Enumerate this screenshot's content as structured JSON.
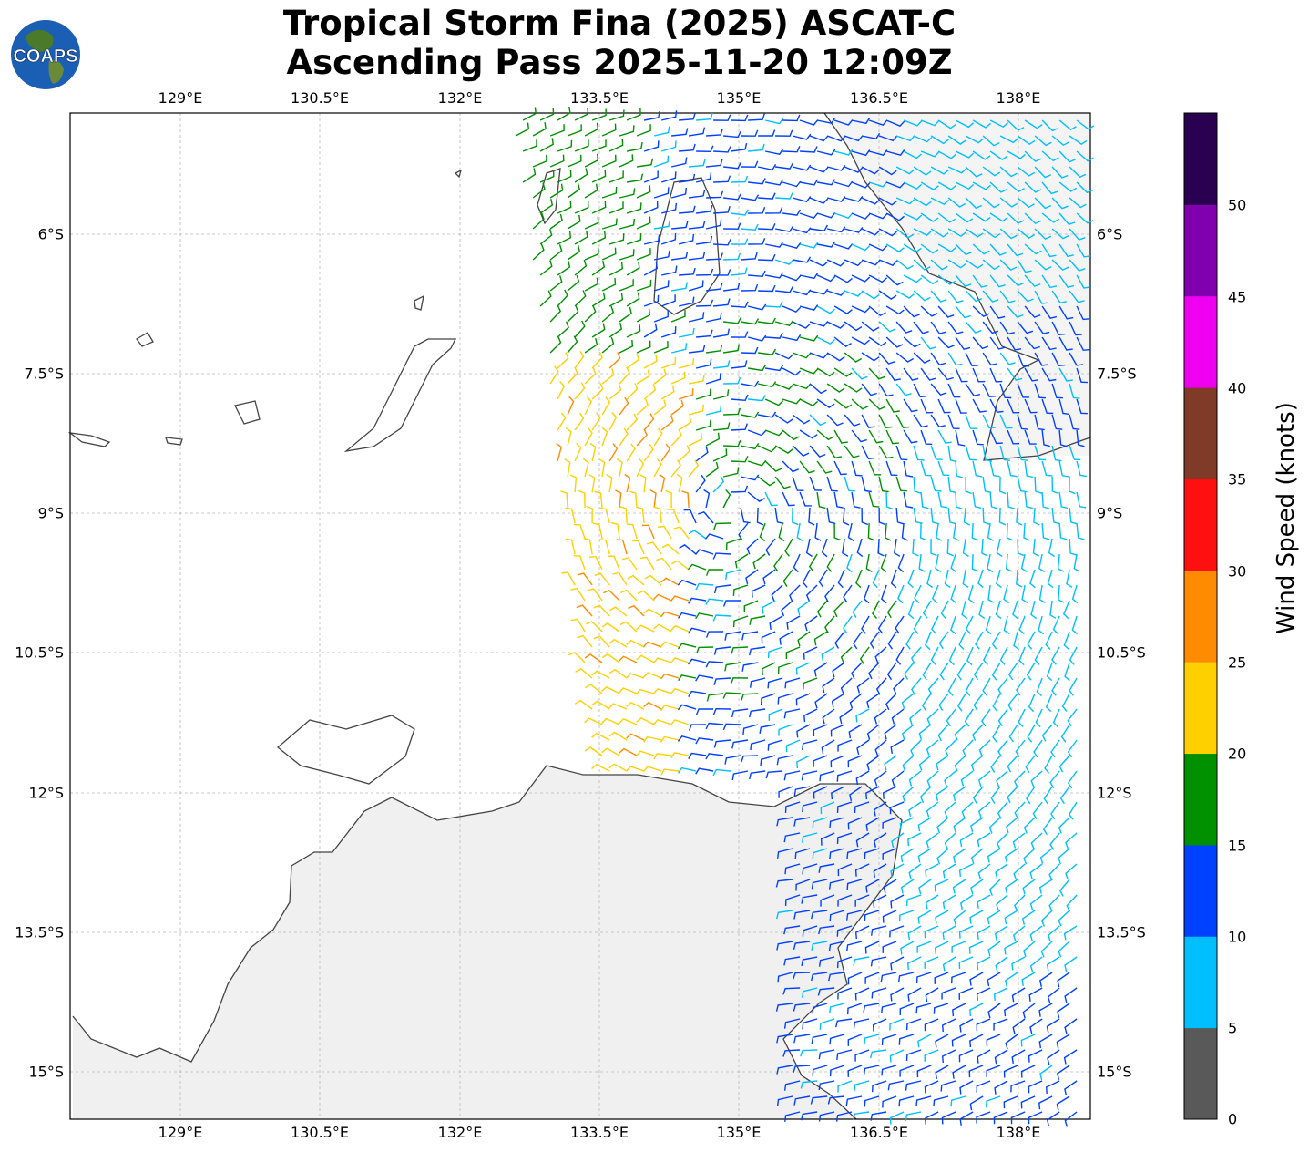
{
  "title": {
    "line1": "Tropical Storm Fina (2025) ASCAT-C",
    "line2": "Ascending Pass 2025-11-20 12:09Z"
  },
  "logo": {
    "text": "COAPS"
  },
  "map": {
    "lon_ticks": [
      "129°E",
      "130.5°E",
      "132°E",
      "133.5°E",
      "135°E",
      "136.5°E",
      "138°E"
    ],
    "lat_ticks": [
      "6°S",
      "7.5°S",
      "9°S",
      "10.5°S",
      "12°S",
      "13.5°S",
      "15°S"
    ],
    "grid": true,
    "land_color": "#f2f2f2",
    "coast_color": "#444444"
  },
  "colorbar": {
    "label": "Wind Speed (knots)",
    "ticks": [
      "0",
      "5",
      "10",
      "15",
      "20",
      "25",
      "30",
      "35",
      "40",
      "45",
      "50"
    ],
    "colors": [
      "#595959",
      "#00bfff",
      "#0040ff",
      "#009000",
      "#ffd000",
      "#ff8c00",
      "#ff1010",
      "#7f3a28",
      "#f000f0",
      "#8000b0",
      "#2a0050"
    ]
  }
}
